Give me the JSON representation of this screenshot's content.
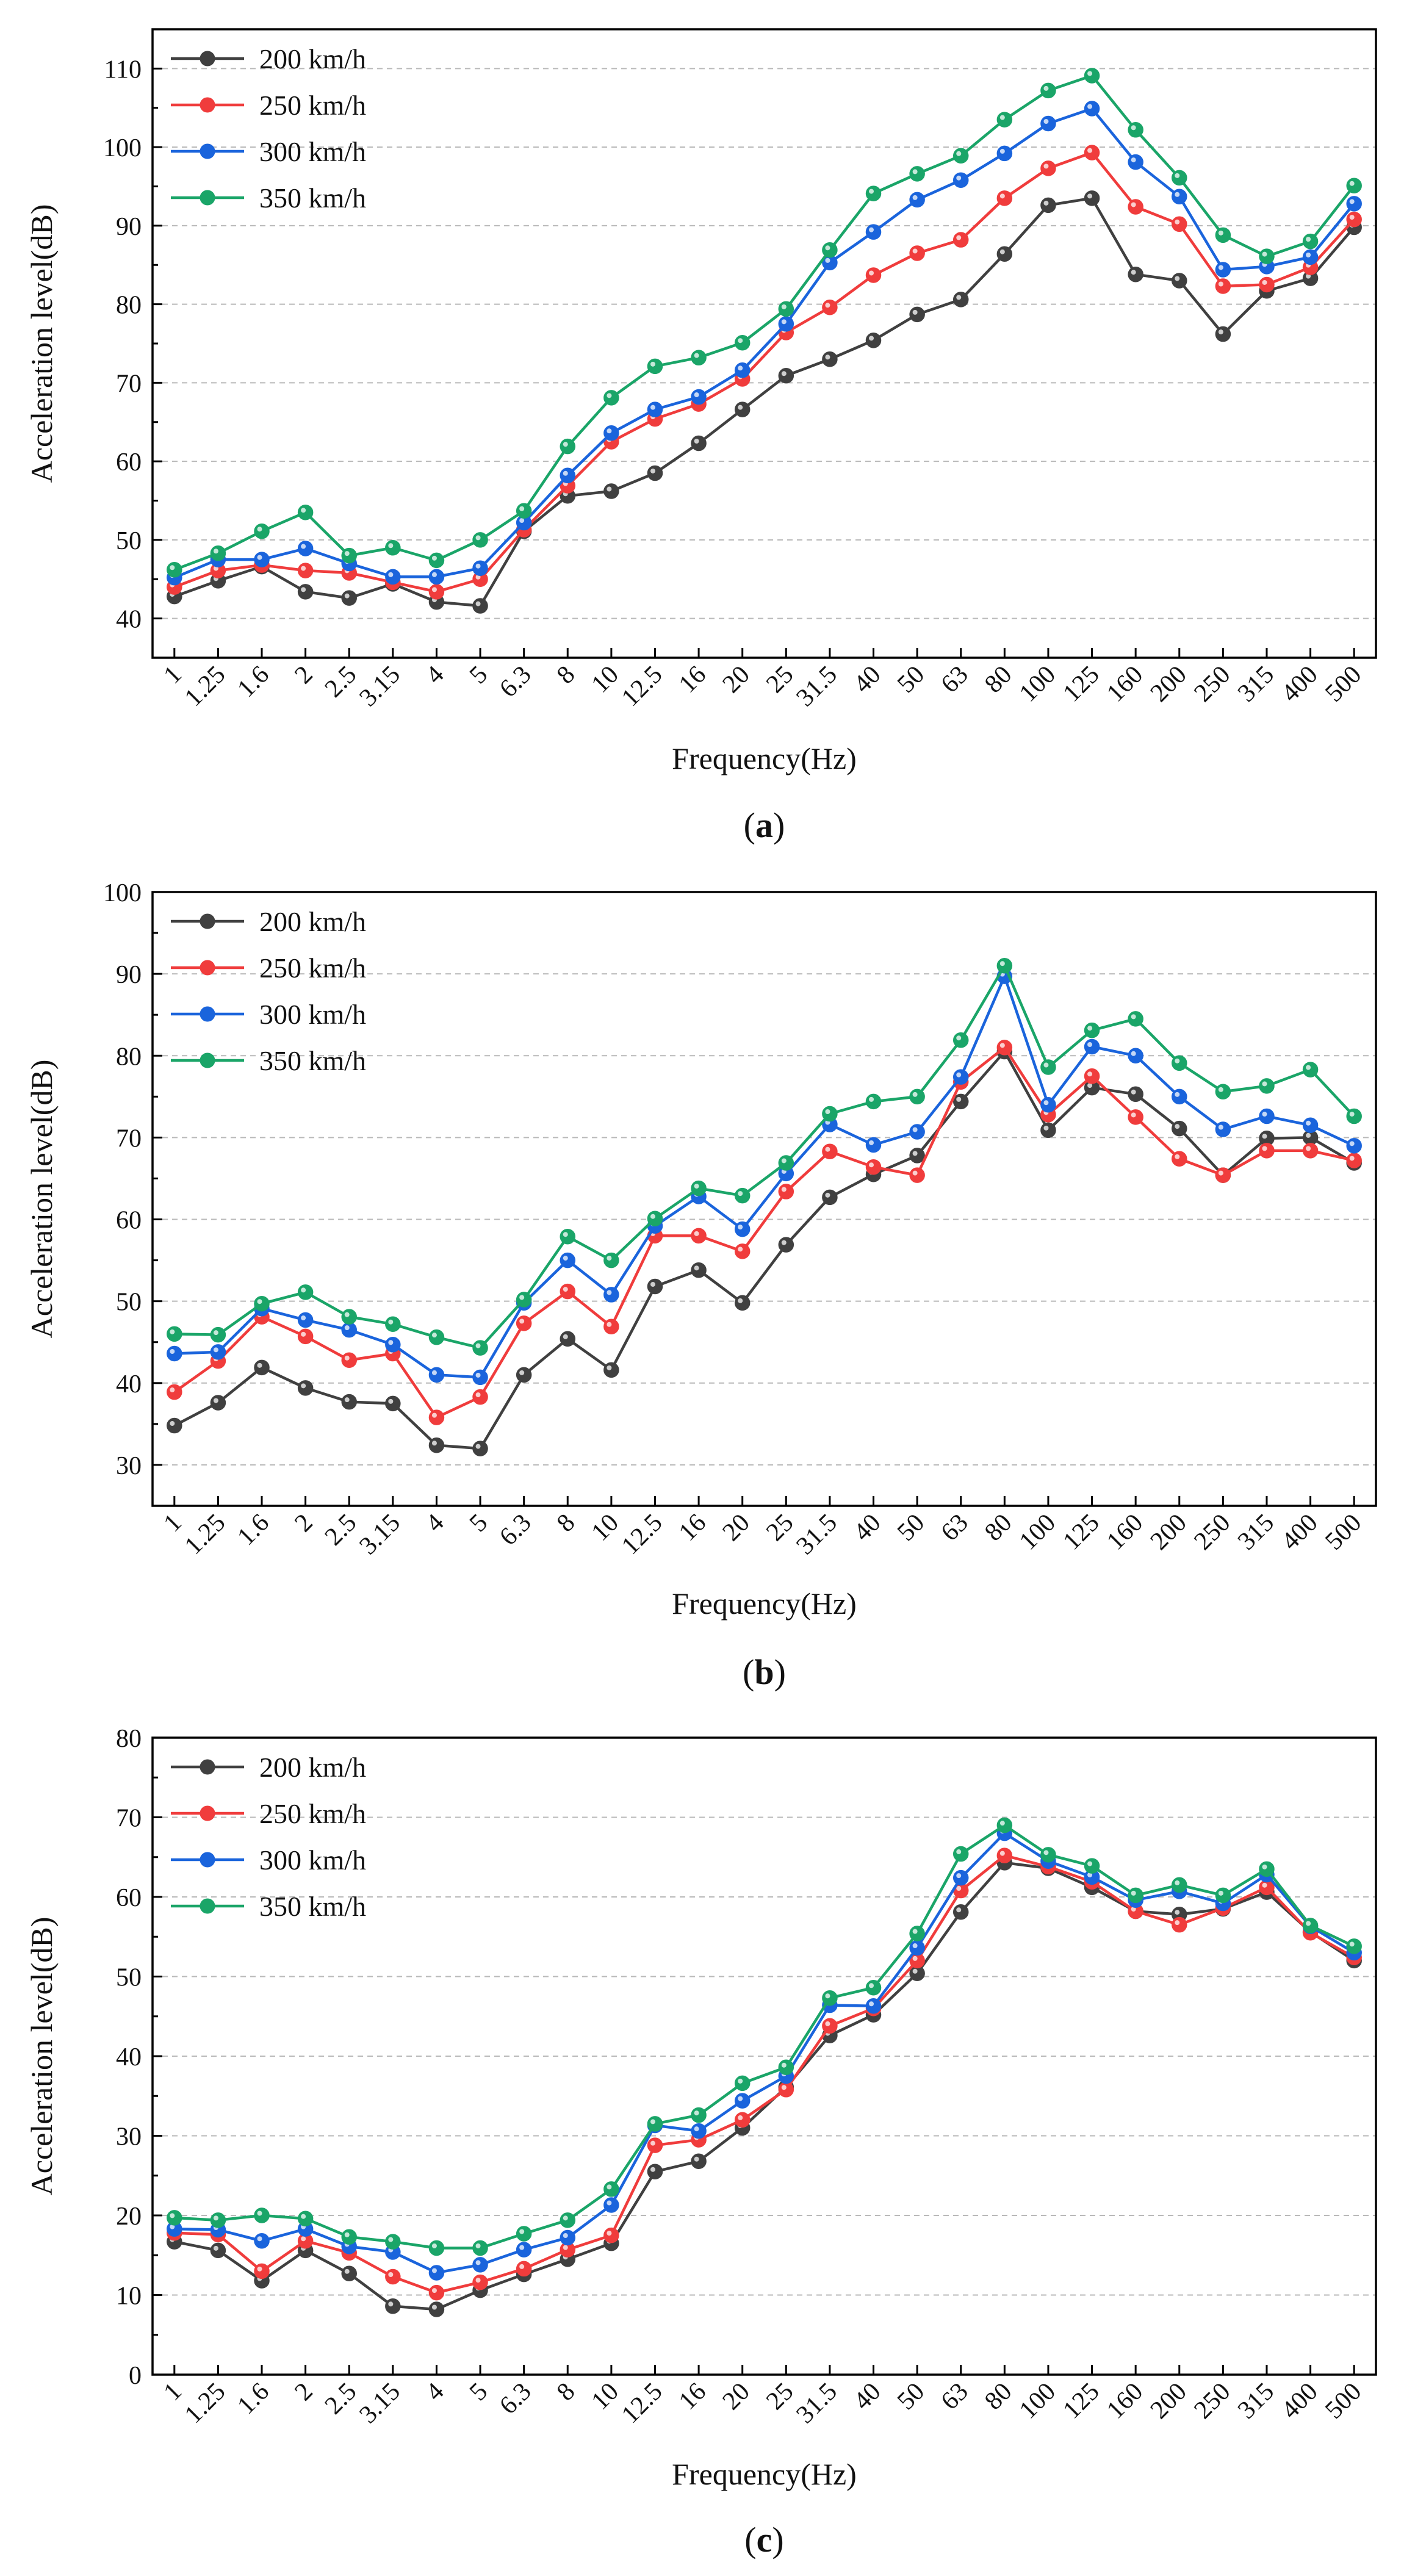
{
  "figure": {
    "panels": [
      {
        "caption_open": "(",
        "caption_letter": "a",
        "caption_close": ")"
      },
      {
        "caption_open": "(",
        "caption_letter": "b",
        "caption_close": ")"
      },
      {
        "caption_open": "(",
        "caption_letter": "c",
        "caption_close": ")"
      }
    ]
  },
  "chart_data": [
    {
      "type": "line",
      "panel": "a",
      "xlabel": "Frequency(Hz)",
      "ylabel": "Acceleration level(dB)",
      "ylim": [
        35,
        115
      ],
      "yticks": [
        40,
        50,
        60,
        70,
        80,
        90,
        100,
        110
      ],
      "grid": true,
      "legend_position": "top-left",
      "categories": [
        "1",
        "1.25",
        "1.6",
        "2",
        "2.5",
        "3.15",
        "4",
        "5",
        "6.3",
        "8",
        "10",
        "12.5",
        "16",
        "20",
        "25",
        "31.5",
        "40",
        "50",
        "63",
        "80",
        "100",
        "125",
        "160",
        "200",
        "250",
        "315",
        "400",
        "500"
      ],
      "series": [
        {
          "name": "200 km/h",
          "color": "#404040",
          "values": [
            42.8,
            44.8,
            46.6,
            43.4,
            42.6,
            44.4,
            42.1,
            41.6,
            51.1,
            55.6,
            56.2,
            58.5,
            62.3,
            66.6,
            70.9,
            73.0,
            75.4,
            78.7,
            80.6,
            86.4,
            92.6,
            93.5,
            83.8,
            83.0,
            76.2,
            81.7,
            83.3,
            89.8
          ]
        },
        {
          "name": "250 km/h",
          "color": "#f03c3c",
          "values": [
            44.0,
            46.1,
            46.8,
            46.1,
            45.8,
            44.6,
            43.4,
            45.0,
            51.3,
            56.9,
            62.5,
            65.4,
            67.3,
            70.5,
            76.4,
            79.6,
            83.7,
            86.5,
            88.2,
            93.5,
            97.3,
            99.3,
            92.4,
            90.2,
            82.3,
            82.5,
            84.7,
            90.8
          ]
        },
        {
          "name": "300 km/h",
          "color": "#1a64dc",
          "values": [
            45.2,
            47.5,
            47.5,
            48.9,
            47.0,
            45.3,
            45.3,
            46.4,
            52.2,
            58.2,
            63.6,
            66.6,
            68.2,
            71.6,
            77.5,
            85.3,
            89.2,
            93.3,
            95.8,
            99.2,
            103.0,
            104.9,
            98.1,
            93.7,
            84.4,
            84.8,
            86.0,
            92.8
          ]
        },
        {
          "name": "350 km/h",
          "color": "#1aa568",
          "values": [
            46.2,
            48.3,
            51.1,
            53.5,
            48.0,
            49.0,
            47.4,
            50.0,
            53.7,
            61.9,
            68.1,
            72.1,
            73.2,
            75.1,
            79.4,
            86.9,
            94.1,
            96.6,
            98.9,
            103.5,
            107.2,
            109.1,
            102.2,
            96.1,
            88.8,
            86.1,
            88.0,
            95.1
          ]
        }
      ]
    },
    {
      "type": "line",
      "panel": "b",
      "xlabel": "Frequency(Hz)",
      "ylabel": "Acceleration level(dB)",
      "ylim": [
        25,
        100
      ],
      "yticks": [
        30,
        40,
        50,
        60,
        70,
        80,
        90,
        100
      ],
      "grid": true,
      "legend_position": "top-left",
      "categories": [
        "1",
        "1.25",
        "1.6",
        "2",
        "2.5",
        "3.15",
        "4",
        "5",
        "6.3",
        "8",
        "10",
        "12.5",
        "16",
        "20",
        "25",
        "31.5",
        "40",
        "50",
        "63",
        "80",
        "100",
        "125",
        "160",
        "200",
        "250",
        "315",
        "400",
        "500"
      ],
      "series": [
        {
          "name": "200 km/h",
          "color": "#404040",
          "values": [
            34.8,
            37.6,
            41.9,
            39.4,
            37.7,
            37.5,
            32.4,
            32.0,
            41.0,
            45.4,
            41.6,
            51.8,
            53.8,
            49.8,
            56.9,
            62.7,
            65.5,
            67.8,
            74.4,
            80.5,
            70.9,
            76.1,
            75.3,
            71.1,
            65.4,
            69.9,
            70.0,
            66.9
          ]
        },
        {
          "name": "250 km/h",
          "color": "#f03c3c",
          "values": [
            38.9,
            42.7,
            48.1,
            45.7,
            42.8,
            43.6,
            35.8,
            38.3,
            47.3,
            51.2,
            46.9,
            58.0,
            58.0,
            56.1,
            63.4,
            68.3,
            66.4,
            65.4,
            76.8,
            81.0,
            72.8,
            77.5,
            72.5,
            67.4,
            65.4,
            68.4,
            68.4,
            67.2
          ]
        },
        {
          "name": "300 km/h",
          "color": "#1a64dc",
          "values": [
            43.6,
            43.8,
            49.1,
            47.7,
            46.5,
            44.7,
            41.0,
            40.7,
            49.8,
            55.0,
            50.8,
            59.2,
            62.8,
            58.8,
            65.6,
            71.6,
            69.1,
            70.7,
            77.4,
            89.7,
            74.0,
            81.1,
            80.0,
            75.0,
            71.0,
            72.6,
            71.5,
            69.0
          ]
        },
        {
          "name": "350 km/h",
          "color": "#1aa568",
          "values": [
            46.0,
            45.9,
            49.7,
            51.1,
            48.1,
            47.2,
            45.6,
            44.3,
            50.2,
            57.9,
            55.0,
            60.1,
            63.8,
            62.9,
            66.9,
            72.9,
            74.4,
            75.0,
            81.9,
            91.0,
            78.6,
            83.1,
            84.5,
            79.1,
            75.6,
            76.3,
            78.3,
            72.6
          ]
        }
      ]
    },
    {
      "type": "line",
      "panel": "c",
      "xlabel": "Frequency(Hz)",
      "ylabel": "Acceleration level(dB)",
      "ylim": [
        0,
        80
      ],
      "yticks": [
        0,
        10,
        20,
        30,
        40,
        50,
        60,
        70,
        80
      ],
      "grid": true,
      "legend_position": "top-left",
      "categories": [
        "1",
        "1.25",
        "1.6",
        "2",
        "2.5",
        "3.15",
        "4",
        "5",
        "6.3",
        "8",
        "10",
        "12.5",
        "16",
        "20",
        "25",
        "31.5",
        "40",
        "50",
        "63",
        "80",
        "100",
        "125",
        "160",
        "200",
        "250",
        "315",
        "400",
        "500"
      ],
      "series": [
        {
          "name": "200 km/h",
          "color": "#404040",
          "values": [
            16.7,
            15.6,
            11.8,
            15.6,
            12.7,
            8.6,
            8.2,
            10.6,
            12.6,
            14.5,
            16.5,
            25.5,
            26.8,
            31.0,
            36.1,
            42.6,
            45.2,
            50.4,
            58.1,
            64.3,
            63.6,
            61.2,
            58.2,
            57.8,
            58.5,
            60.6,
            55.6,
            52.0
          ]
        },
        {
          "name": "250 km/h",
          "color": "#f03c3c",
          "values": [
            17.8,
            17.6,
            13.0,
            16.8,
            15.3,
            12.3,
            10.3,
            11.6,
            13.3,
            15.7,
            17.5,
            28.8,
            29.5,
            32.0,
            35.8,
            43.8,
            46.0,
            52.0,
            60.8,
            65.2,
            63.8,
            61.9,
            58.2,
            56.5,
            58.6,
            61.2,
            55.5,
            52.4
          ]
        },
        {
          "name": "300 km/h",
          "color": "#1a64dc",
          "values": [
            18.3,
            18.2,
            16.8,
            18.3,
            16.1,
            15.4,
            12.8,
            13.8,
            15.7,
            17.2,
            21.3,
            31.3,
            30.6,
            34.4,
            37.5,
            46.4,
            46.3,
            53.6,
            62.4,
            68.0,
            64.5,
            62.5,
            59.6,
            60.7,
            59.2,
            62.8,
            56.3,
            53.0
          ]
        },
        {
          "name": "350 km/h",
          "color": "#1aa568",
          "values": [
            19.7,
            19.4,
            20.0,
            19.6,
            17.3,
            16.7,
            15.9,
            15.9,
            17.7,
            19.4,
            23.3,
            31.5,
            32.6,
            36.6,
            38.6,
            47.3,
            48.6,
            55.4,
            65.4,
            69.0,
            65.3,
            63.9,
            60.2,
            61.5,
            60.2,
            63.5,
            56.4,
            53.8
          ]
        }
      ]
    }
  ]
}
